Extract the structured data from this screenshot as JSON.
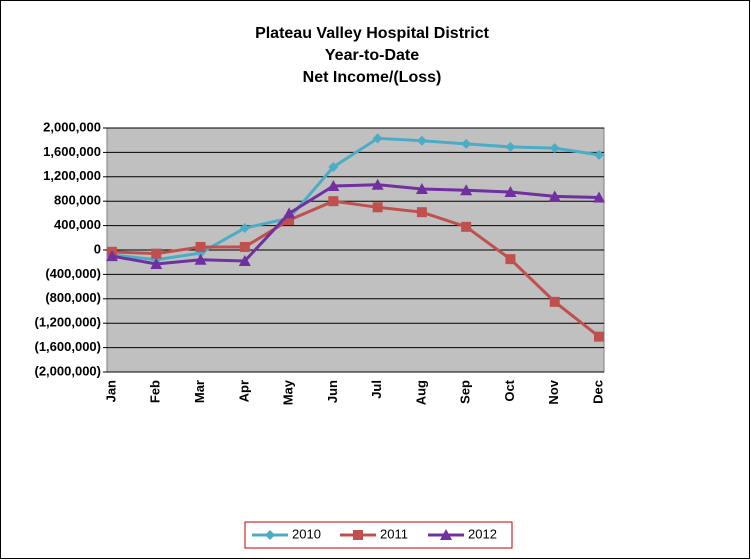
{
  "chart_data": {
    "type": "line",
    "title": [
      "Plateau Valley Hospital District",
      "Year-to-Date",
      "Net Income/(Loss)"
    ],
    "categories": [
      "Jan",
      "Feb",
      "Mar",
      "Apr",
      "May",
      "Jun",
      "Jul",
      "Aug",
      "Sep",
      "Oct",
      "Nov",
      "Dec"
    ],
    "series": [
      {
        "name": "2010",
        "color": "#4bacc6",
        "values": [
          -80000,
          -160000,
          -50000,
          360000,
          520000,
          1360000,
          1830000,
          1790000,
          1740000,
          1690000,
          1670000,
          1560000
        ]
      },
      {
        "name": "2011",
        "color": "#c0504d",
        "values": [
          -30000,
          -60000,
          50000,
          50000,
          490000,
          800000,
          700000,
          620000,
          380000,
          -150000,
          -850000,
          -1420000
        ]
      },
      {
        "name": "2012",
        "color": "#7030a0",
        "values": [
          -100000,
          -230000,
          -160000,
          -180000,
          600000,
          1050000,
          1070000,
          1000000,
          980000,
          950000,
          880000,
          860000
        ]
      }
    ],
    "ylim": [
      -2000000,
      2000000
    ],
    "yticks": [
      {
        "value": 2000000,
        "label": "2,000,000"
      },
      {
        "value": 1600000,
        "label": "1,600,000"
      },
      {
        "value": 1200000,
        "label": "1,200,000"
      },
      {
        "value": 800000,
        "label": "800,000"
      },
      {
        "value": 400000,
        "label": "400,000"
      },
      0,
      {
        "value": -400000,
        "label": "(400,000)"
      },
      {
        "value": -800000,
        "label": "(800,000)"
      },
      {
        "value": -1200000,
        "label": "(1,200,000)"
      },
      {
        "value": -1600000,
        "label": "(1,600,000)"
      },
      {
        "value": -2000000,
        "label": "(2,000,000)"
      }
    ],
    "grid": true,
    "legend": "bottom"
  }
}
